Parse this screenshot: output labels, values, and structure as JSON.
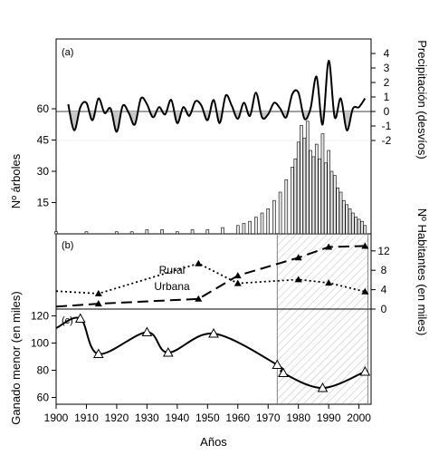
{
  "chart_data": [
    {
      "panel": "(a)",
      "type": "line",
      "ylabel": "Precipitación (desvíos)",
      "y_axis_side": "right",
      "ylim": [
        -2,
        4
      ],
      "yticks": [
        "4",
        "3",
        "2",
        "1",
        "0",
        "-1",
        "-2"
      ],
      "x": [
        1904,
        1906,
        1908,
        1910,
        1912,
        1914,
        1916,
        1918,
        1920,
        1922,
        1924,
        1926,
        1928,
        1930,
        1932,
        1934,
        1936,
        1938,
        1940,
        1942,
        1944,
        1946,
        1948,
        1950,
        1952,
        1954,
        1956,
        1958,
        1960,
        1962,
        1964,
        1966,
        1968,
        1970,
        1972,
        1974,
        1976,
        1978,
        1980,
        1982,
        1984,
        1986,
        1988,
        1990,
        1992,
        1994,
        1996,
        1998,
        2000,
        2002
      ],
      "series": [
        {
          "values": [
            0.5,
            -1.3,
            0.3,
            0.6,
            -0.6,
            0.9,
            -0.1,
            0.2,
            -1.4,
            0.4,
            -0.1,
            -0.9,
            0.9,
            0.5,
            -0.4,
            0.3,
            -0.2,
            0.8,
            -0.8,
            0.3,
            -0.3,
            0.7,
            0.4,
            -0.6,
            0.8,
            -0.8,
            1.1,
            0.4,
            -0.5,
            0.6,
            -0.3,
            1.3,
            -0.4,
            -0.2,
            0.6,
            0.2,
            -0.4,
            1.2,
            1.3,
            -0.5,
            0.2,
            2.4,
            -0.9,
            3.5,
            -0.4,
            0.9,
            -1.3,
            0.2,
            0.3,
            0.9
          ]
        }
      ]
    },
    {
      "panel": "(a)",
      "type": "bar",
      "ylabel": "Nº árboles",
      "y_axis_side": "left",
      "ylim": [
        0,
        70
      ],
      "yticks": [
        "60",
        "45",
        "30",
        "15"
      ],
      "x": [
        1900,
        1905,
        1910,
        1915,
        1920,
        1925,
        1930,
        1935,
        1940,
        1945,
        1950,
        1955,
        1960,
        1962,
        1964,
        1966,
        1968,
        1970,
        1972,
        1974,
        1976,
        1978,
        1979,
        1980,
        1981,
        1982,
        1983,
        1984,
        1985,
        1986,
        1987,
        1988,
        1989,
        1990,
        1991,
        1992,
        1993,
        1994,
        1995,
        1996,
        1997,
        1998,
        1999,
        2000,
        2001,
        2002
      ],
      "values": [
        1,
        0,
        1,
        0,
        1,
        1,
        2,
        2,
        1,
        2,
        2,
        3,
        4,
        5,
        6,
        8,
        10,
        12,
        16,
        20,
        26,
        32,
        36,
        44,
        52,
        46,
        54,
        40,
        37,
        43,
        36,
        48,
        34,
        40,
        30,
        28,
        22,
        20,
        16,
        14,
        12,
        10,
        8,
        7,
        6,
        4
      ]
    },
    {
      "panel": "(b)",
      "type": "line",
      "ylabel": "Nº Habitantes (en miles)",
      "y_axis_side": "right",
      "ylim": [
        0,
        14
      ],
      "yticks": [
        "12",
        "8",
        "4",
        "0"
      ],
      "series": [
        {
          "name": "Rural",
          "x": [
            1900,
            1914,
            1947,
            1960,
            1980,
            1990,
            2002
          ],
          "values": [
            3.7,
            3.2,
            9.4,
            5.3,
            6.1,
            5.4,
            3.6
          ]
        },
        {
          "name": "Urbana",
          "x": [
            1900,
            1914,
            1947,
            1960,
            1980,
            1990,
            2002
          ],
          "values": [
            0.5,
            1.1,
            2.1,
            6.9,
            10.6,
            12.8,
            13.0
          ]
        }
      ]
    },
    {
      "panel": "(c)",
      "type": "line",
      "ylabel": "Ganado menor (en miles)",
      "y_axis_side": "left",
      "ylim": [
        55,
        125
      ],
      "yticks": [
        "120",
        "100",
        "80",
        "60"
      ],
      "series": [
        {
          "x": [
            1908,
            1914,
            1930,
            1937,
            1952,
            1973,
            1975,
            1988,
            2002
          ],
          "values": [
            118,
            92,
            108,
            93,
            107,
            84,
            78,
            67,
            79
          ]
        }
      ]
    }
  ],
  "x_axis": {
    "label": "Años",
    "xlim": [
      1900,
      2004
    ],
    "ticks": [
      "1900",
      "1910",
      "1920",
      "1930",
      "1940",
      "1950",
      "1960",
      "1970",
      "1980",
      "1990",
      "2000"
    ]
  },
  "shaded_period": [
    1973,
    2003
  ]
}
